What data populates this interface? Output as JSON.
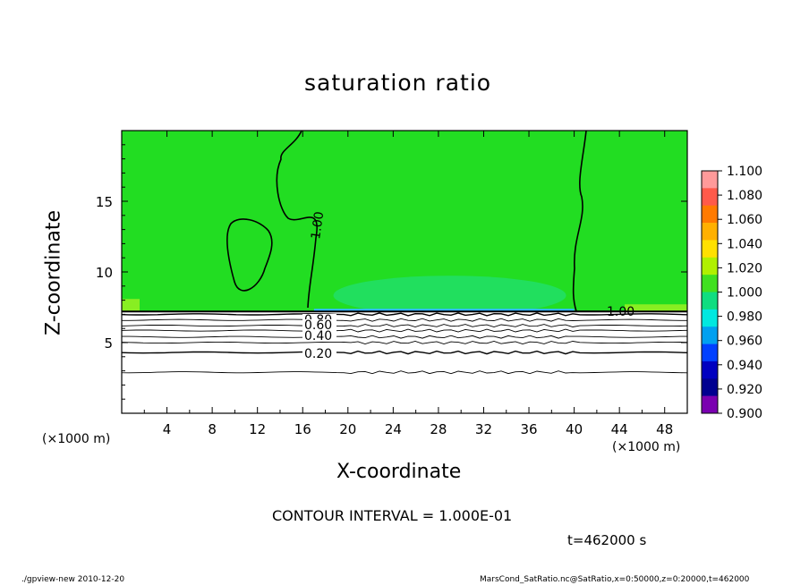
{
  "chart_data": {
    "type": "heatmap",
    "title": "saturation ratio",
    "xlabel": "X-coordinate",
    "ylabel": "Z-coordinate",
    "x_unit_label": "(×1000 m)",
    "xlim": [
      0,
      50
    ],
    "ylim": [
      0,
      20
    ],
    "x_ticks": [
      "4",
      "8",
      "12",
      "16",
      "20",
      "24",
      "28",
      "32",
      "36",
      "40",
      "44",
      "48"
    ],
    "y_ticks": [
      "5",
      "10",
      "15"
    ],
    "contour_interval_label": "CONTOUR INTERVAL = 1.000E-01",
    "time_label": "t=462000 s",
    "colorbar": {
      "labels": [
        "1.100",
        "1.080",
        "1.060",
        "1.040",
        "1.020",
        "1.000",
        "0.980",
        "0.960",
        "0.940",
        "0.920",
        "0.900"
      ],
      "colors": [
        "#ff9a9a",
        "#ff5a4a",
        "#ff7a00",
        "#ffb000",
        "#ffe000",
        "#b0f000",
        "#40e020",
        "#10dd80",
        "#00e8e0",
        "#00a0f0",
        "#0040ff",
        "#0000c0",
        "#000090",
        "#7a00b0"
      ]
    },
    "region_colors": {
      "saturated": "#22dd22",
      "supersaturated_edge": "#88ee22",
      "subsaturated_band": "#20e090",
      "below_cloud": "#ffffff"
    },
    "contour_labels": [
      "1.00",
      "1.00",
      "0.80",
      "0.60",
      "0.40",
      "0.20"
    ],
    "contour_levels": [
      {
        "level": 0.8,
        "z": 7.0
      },
      {
        "level": 0.7,
        "z": 6.6
      },
      {
        "level": 0.6,
        "z": 6.2
      },
      {
        "level": 0.5,
        "z": 5.85
      },
      {
        "level": 0.4,
        "z": 5.4
      },
      {
        "level": 0.3,
        "z": 5.0
      },
      {
        "level": 0.2,
        "z": 4.3
      },
      {
        "level": 0.1,
        "z": 2.9
      }
    ],
    "cloud_base_z": 7.2
  },
  "footer": {
    "left": "./gpview-new  2010-12-20",
    "right": "MarsCond_SatRatio.nc@SatRatio,x=0:50000,z=0:20000,t=462000"
  }
}
